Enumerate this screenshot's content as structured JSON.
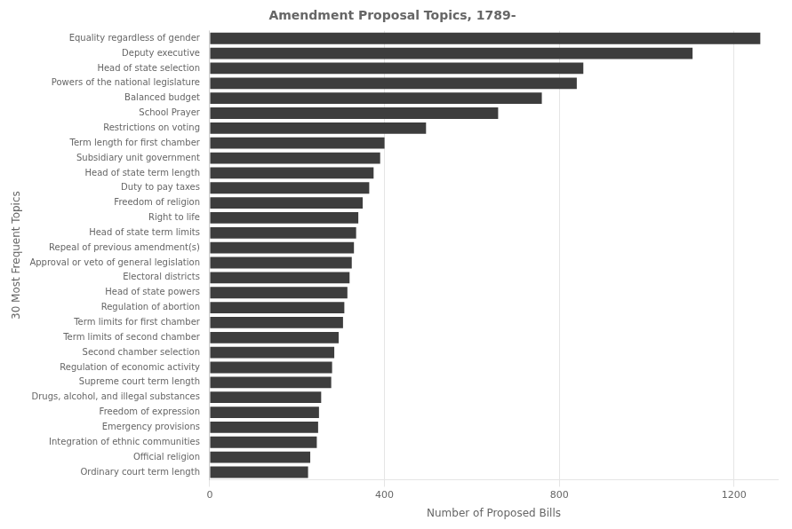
{
  "chart_data": {
    "type": "bar",
    "orientation": "horizontal",
    "title": "Amendment Proposal Topics, 1789-",
    "x_label": "Number of Proposed Bills",
    "y_label": "30 Most Frequent Topics",
    "categories": [
      "Equality regardless of gender",
      "Deputy executive",
      "Head of state selection",
      "Powers of the national legislature",
      "Balanced budget",
      "School Prayer",
      "Restrictions on voting",
      "Term length for first chamber",
      "Subsidiary unit government",
      "Head of state term length",
      "Duty to pay taxes",
      "Freedom of religion",
      "Right to life",
      "Head of state term limits",
      "Repeal of previous amendment(s)",
      "Approval or veto of general legislation",
      "Electoral districts",
      "Head of state powers",
      "Regulation of abortion",
      "Term limits for first chamber",
      "Term limits of second chamber",
      "Second chamber selection",
      "Regulation of economic activity",
      "Supreme court term length",
      "Drugs, alcohol, and illegal substances",
      "Freedom of expression",
      "Emergency provisions",
      "Integration of ethnic communities",
      "Official religion",
      "Ordinary court term length"
    ],
    "values": [
      1260,
      1105,
      855,
      840,
      760,
      660,
      495,
      400,
      390,
      375,
      365,
      350,
      340,
      335,
      330,
      325,
      320,
      315,
      308,
      305,
      295,
      285,
      280,
      278,
      255,
      250,
      248,
      245,
      230,
      225
    ],
    "color": "#3d3d3d",
    "xlim": [
      0,
      1300
    ],
    "xticks": [
      0,
      400,
      800,
      1200
    ],
    "grid": true
  }
}
